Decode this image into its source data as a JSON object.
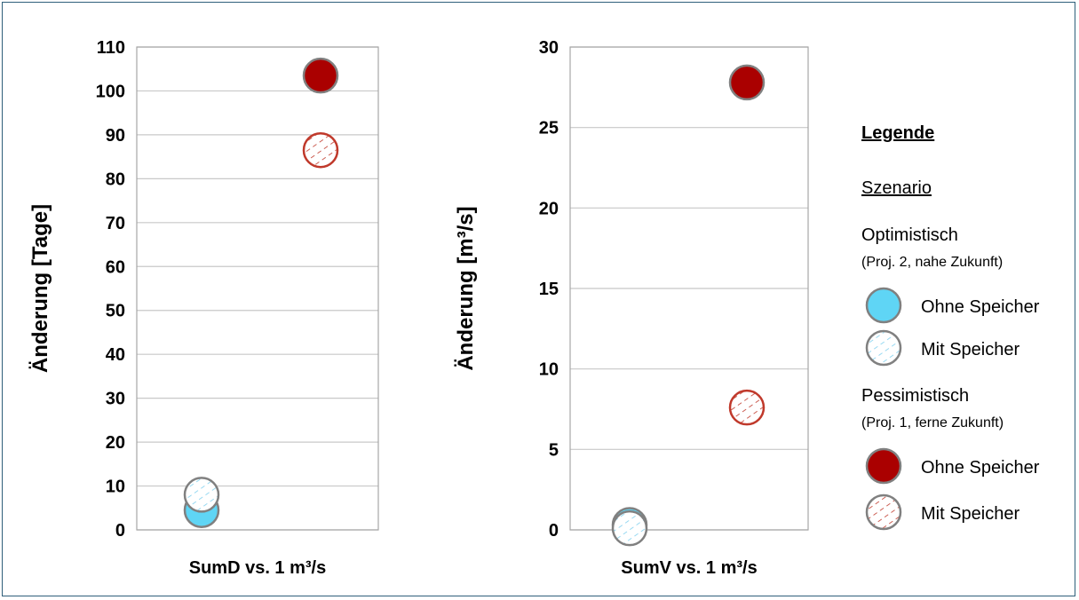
{
  "colors": {
    "optimistic_solid": "#5fd5f5",
    "optimistic_hatch": "#7fd0ef",
    "pessimistic_solid": "#aa0000",
    "pessimistic_hatch": "#c0392b",
    "marker_stroke": "#808080",
    "grid": "#c8c8c8",
    "frame": "#2f5f7a"
  },
  "chart_data": [
    {
      "type": "scatter",
      "title": "",
      "xlabel": "SumD vs. 1 m³/s",
      "ylabel": "Änderung [Tage]",
      "ylim": [
        0,
        110
      ],
      "yticks": [
        0,
        10,
        20,
        30,
        40,
        50,
        60,
        70,
        80,
        90,
        100,
        110
      ],
      "grid": true,
      "categories": [
        "Optimistisch",
        "Pessimistisch"
      ],
      "series": [
        {
          "key": "opt_ohne",
          "scenario": "Optimistisch",
          "storage": "Ohne Speicher",
          "style": "solid",
          "x": 1,
          "y": 4.5
        },
        {
          "key": "opt_mit",
          "scenario": "Optimistisch",
          "storage": "Mit Speicher",
          "style": "hatch",
          "x": 1,
          "y": 8
        },
        {
          "key": "pes_ohne",
          "scenario": "Pessimistisch",
          "storage": "Ohne Speicher",
          "style": "solid",
          "x": 2,
          "y": 103.5
        },
        {
          "key": "pes_mit",
          "scenario": "Pessimistisch",
          "storage": "Mit Speicher",
          "style": "hatch",
          "x": 2,
          "y": 86.5
        }
      ]
    },
    {
      "type": "scatter",
      "title": "",
      "xlabel": "SumV vs. 1 m³/s",
      "ylabel": "Änderung [m³/s]",
      "ylim": [
        0,
        30
      ],
      "yticks": [
        0,
        5,
        10,
        15,
        20,
        25,
        30
      ],
      "grid": true,
      "categories": [
        "Optimistisch",
        "Pessimistisch"
      ],
      "series": [
        {
          "key": "opt_ohne",
          "scenario": "Optimistisch",
          "storage": "Ohne Speicher",
          "style": "solid",
          "x": 1,
          "y": 0.3
        },
        {
          "key": "opt_mit",
          "scenario": "Optimistisch",
          "storage": "Mit Speicher",
          "style": "hatch",
          "x": 1,
          "y": 0.1
        },
        {
          "key": "pes_ohne",
          "scenario": "Pessimistisch",
          "storage": "Ohne Speicher",
          "style": "solid",
          "x": 2,
          "y": 27.8
        },
        {
          "key": "pes_mit",
          "scenario": "Pessimistisch",
          "storage": "Mit Speicher",
          "style": "hatch",
          "x": 2,
          "y": 7.6
        }
      ]
    }
  ],
  "legend": {
    "title": "Legende",
    "subtitle": "Szenario",
    "groups": [
      {
        "name": "Optimistisch",
        "detail": "(Proj. 2, nahe Zukunft)",
        "items": [
          {
            "label": "Ohne Speicher",
            "style": "solid"
          },
          {
            "label": "Mit Speicher",
            "style": "hatch"
          }
        ]
      },
      {
        "name": "Pessimistisch",
        "detail": "(Proj. 1, ferne Zukunft)",
        "items": [
          {
            "label": "Ohne Speicher",
            "style": "solid"
          },
          {
            "label": "Mit Speicher",
            "style": "hatch"
          }
        ]
      }
    ]
  }
}
